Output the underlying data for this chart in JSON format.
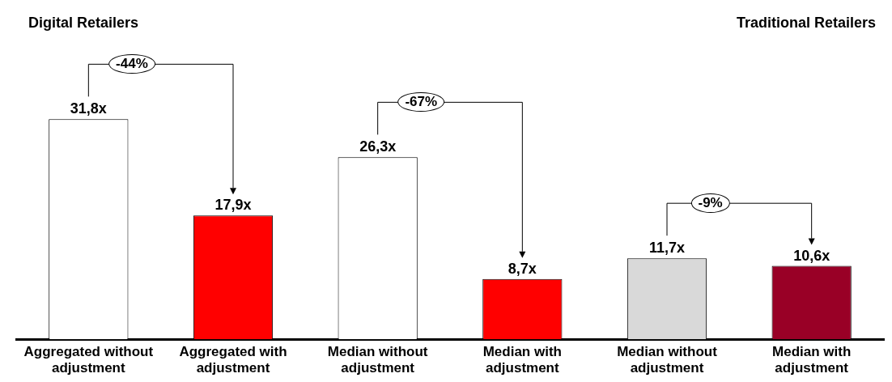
{
  "chart_data": {
    "type": "bar",
    "categories": [
      "Aggregated without adjustment",
      "Aggregated with adjustment",
      "Median without adjustment",
      "Median with adjustment",
      "Median without adjustment",
      "Median with adjustment"
    ],
    "values": [
      31.8,
      17.9,
      26.3,
      8.7,
      11.7,
      10.6
    ],
    "colors": [
      "#ffffff",
      "#ff0000",
      "#ffffff",
      "#ff0000",
      "#d9d9d9",
      "#990026"
    ],
    "value_labels": [
      "31,8x",
      "17,9x",
      "26,3x",
      "8,7x",
      "11,7x",
      "10,6x"
    ],
    "annotations": [
      "Digital Retailers",
      "Traditional Retailers",
      "-44%",
      "-67%",
      "-9%"
    ],
    "grid": false,
    "legend": false
  }
}
